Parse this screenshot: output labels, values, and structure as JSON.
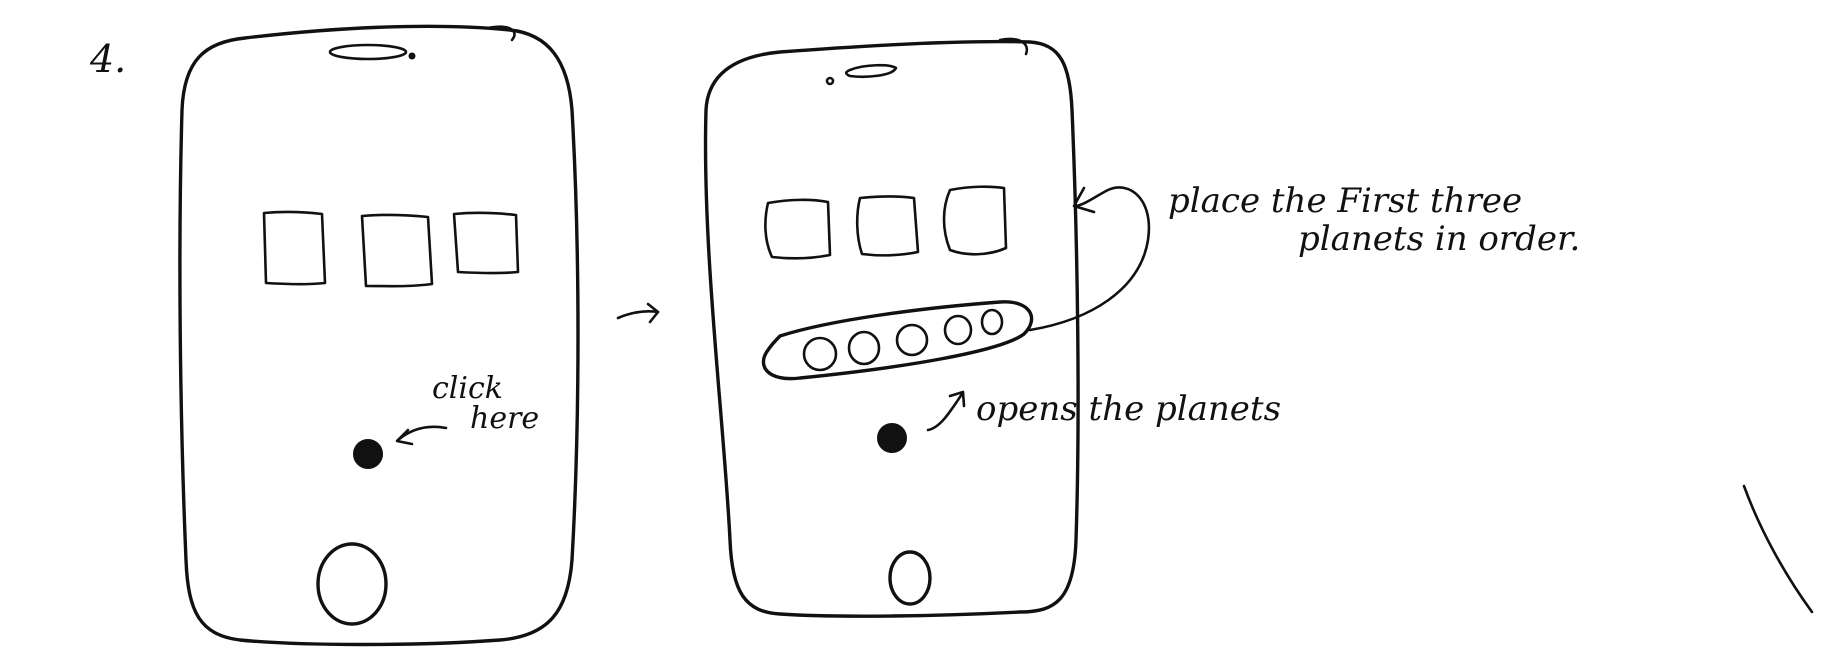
{
  "step_number": "4.",
  "left_screen": {
    "click_hint_line1": "click",
    "click_hint_line2": "here"
  },
  "transition_arrow": "→",
  "right_screen": {
    "annotation_opens": "opens the planets",
    "annotation_place_line1": "place the First three",
    "annotation_place_line2": "planets in order."
  },
  "colors": {
    "ink": "#111111",
    "paper": "#ffffff"
  }
}
